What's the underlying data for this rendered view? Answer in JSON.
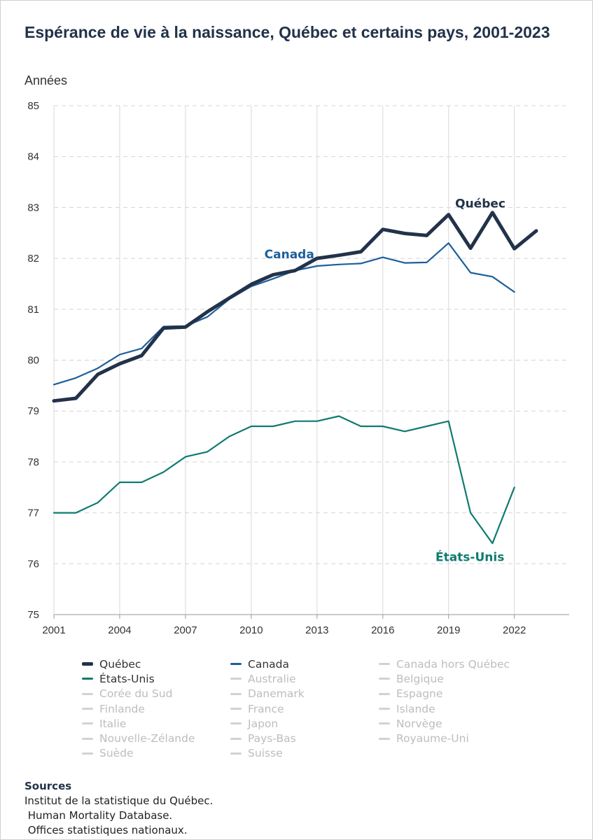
{
  "title": "Espérance de vie à la naissance, Québec et certains pays, 2001-2023",
  "unit_label": "Années",
  "chart_data": {
    "type": "line",
    "x": [
      2001,
      2002,
      2003,
      2004,
      2005,
      2006,
      2007,
      2008,
      2009,
      2010,
      2011,
      2012,
      2013,
      2014,
      2015,
      2016,
      2017,
      2018,
      2019,
      2020,
      2021,
      2022,
      2023
    ],
    "ylim": [
      75,
      85
    ],
    "yticks": [
      75,
      76,
      77,
      78,
      79,
      80,
      81,
      82,
      83,
      84,
      85
    ],
    "xticks": [
      2001,
      2004,
      2007,
      2010,
      2013,
      2016,
      2019,
      2022
    ],
    "xlim": [
      2001,
      2024.5
    ],
    "grid": true,
    "legend_position": "bottom",
    "series": [
      {
        "name": "Québec",
        "color": "#22324a",
        "values": [
          79.2,
          79.25,
          79.72,
          79.93,
          80.09,
          80.63,
          80.65,
          80.95,
          81.22,
          81.49,
          81.68,
          81.76,
          82.0,
          82.06,
          82.13,
          82.57,
          82.49,
          82.45,
          82.86,
          82.2,
          82.9,
          82.19,
          82.54
        ],
        "annotation": "Québec"
      },
      {
        "name": "Canada",
        "color": "#1d5f9b",
        "values": [
          79.52,
          79.65,
          79.84,
          80.11,
          80.23,
          80.66,
          80.67,
          80.85,
          81.2,
          81.45,
          81.6,
          81.76,
          81.85,
          81.88,
          81.9,
          82.02,
          81.91,
          81.92,
          82.3,
          81.72,
          81.64,
          81.34,
          null
        ],
        "annotation": "Canada"
      },
      {
        "name": "États-Unis",
        "color": "#0f7b70",
        "values": [
          77.0,
          77.0,
          77.2,
          77.6,
          77.6,
          77.8,
          78.1,
          78.2,
          78.5,
          78.7,
          78.7,
          78.8,
          78.8,
          78.9,
          78.7,
          78.7,
          78.6,
          78.7,
          78.8,
          77.0,
          76.4,
          77.5,
          null
        ],
        "annotation": "États-Unis"
      }
    ]
  },
  "legend": [
    {
      "label": "Québec",
      "active": true,
      "color": "#22324a",
      "thick": true
    },
    {
      "label": "Canada",
      "active": true,
      "color": "#1d5f9b",
      "thick": false
    },
    {
      "label": "Canada hors Québec",
      "active": false
    },
    {
      "label": "États-Unis",
      "active": true,
      "color": "#0f7b70",
      "thick": false
    },
    {
      "label": "Australie",
      "active": false
    },
    {
      "label": "Belgique",
      "active": false
    },
    {
      "label": "Corée du Sud",
      "active": false
    },
    {
      "label": "Danemark",
      "active": false
    },
    {
      "label": "Espagne",
      "active": false
    },
    {
      "label": "Finlande",
      "active": false
    },
    {
      "label": "France",
      "active": false
    },
    {
      "label": "Islande",
      "active": false
    },
    {
      "label": "Italie",
      "active": false
    },
    {
      "label": "Japon",
      "active": false
    },
    {
      "label": "Norvège",
      "active": false
    },
    {
      "label": "Nouvelle-Zélande",
      "active": false
    },
    {
      "label": "Pays-Bas",
      "active": false
    },
    {
      "label": "Royaume-Uni",
      "active": false
    },
    {
      "label": "Suède",
      "active": false
    },
    {
      "label": "Suisse",
      "active": false
    }
  ],
  "sources": {
    "heading": "Sources",
    "lines": [
      "Institut de la statistique du Québec.",
      " Human Mortality Database.",
      " Offices statistiques nationaux."
    ]
  }
}
